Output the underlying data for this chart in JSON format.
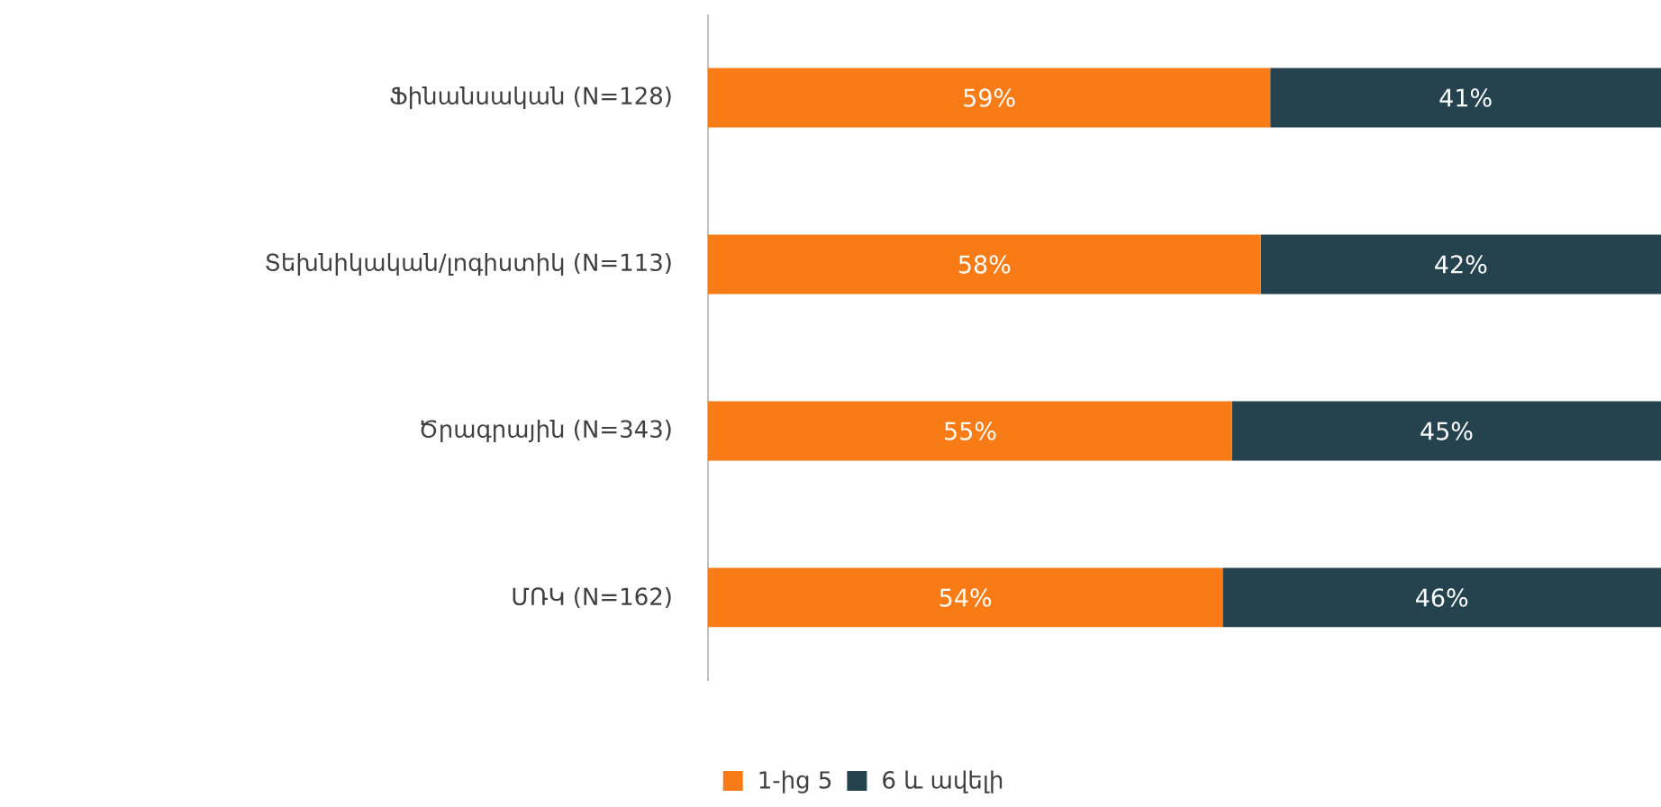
{
  "chart_data": {
    "type": "bar",
    "orientation": "horizontal",
    "stacked": true,
    "categories": [
      "Ֆինանսական (N=128)",
      "Տեխնիկական/լոգիստիկ (N=113)",
      "Ծրագրային (N=343)",
      "ՄՌԿ (N=162)"
    ],
    "series": [
      {
        "name": "1-ից 5",
        "color": "#f97b15",
        "values": [
          59,
          58,
          55,
          54
        ],
        "value_labels": [
          "59%",
          "58%",
          "55%",
          "54%"
        ]
      },
      {
        "name": "6 և ավելի",
        "color": "#25434e",
        "values": [
          41,
          42,
          45,
          46
        ],
        "value_labels": [
          "41%",
          "42%",
          "45%",
          "46%"
        ]
      }
    ],
    "legend": "bottom",
    "grid": false
  }
}
